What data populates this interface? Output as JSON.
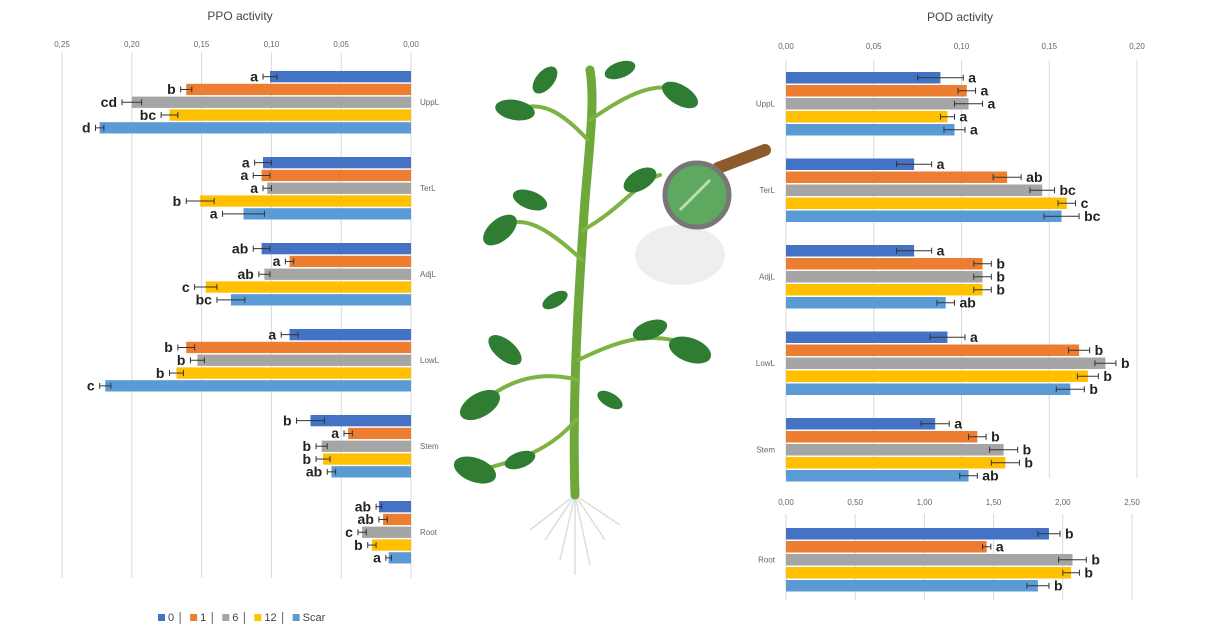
{
  "chart_data": [
    {
      "type": "bar",
      "orientation": "horizontal",
      "title": "PPO activity",
      "categories": [
        "UppL",
        "TerL",
        "AdjL",
        "LowL",
        "Stem",
        "Root"
      ],
      "xlim": [
        0.25,
        0
      ],
      "xticks": [
        {
          "value": 0.25,
          "label": "0,25"
        },
        {
          "value": 0.2,
          "label": "0,20"
        },
        {
          "value": 0.15,
          "label": "0,15"
        },
        {
          "value": 0.1,
          "label": "0,10"
        },
        {
          "value": 0.05,
          "label": "0,05"
        },
        {
          "value": 0,
          "label": "0,00"
        }
      ],
      "grid": true,
      "series": [
        {
          "name": "0",
          "color": "#4472c4",
          "values": [
            0.101,
            0.106,
            0.107,
            0.087,
            0.072,
            0.023
          ],
          "errors": [
            0.005,
            0.006,
            0.006,
            0.006,
            0.01,
            0.002
          ],
          "letters": [
            "a",
            "a",
            "ab",
            "a",
            "b",
            "ab"
          ]
        },
        {
          "name": "1",
          "color": "#ed7d31",
          "values": [
            0.161,
            0.107,
            0.087,
            0.161,
            0.045,
            0.02
          ],
          "errors": [
            0.004,
            0.006,
            0.003,
            0.006,
            0.003,
            0.003
          ],
          "letters": [
            "b",
            "a",
            "a",
            "b",
            "a",
            "ab"
          ]
        },
        {
          "name": "6",
          "color": "#a5a5a5",
          "values": [
            0.2,
            0.103,
            0.105,
            0.153,
            0.064,
            0.035
          ],
          "errors": [
            0.007,
            0.003,
            0.004,
            0.005,
            0.004,
            0.003
          ],
          "letters": [
            "cd",
            "a",
            "ab",
            "b",
            "b",
            "c"
          ]
        },
        {
          "name": "12",
          "color": "#ffc000",
          "values": [
            0.173,
            0.151,
            0.147,
            0.168,
            0.063,
            0.028
          ],
          "errors": [
            0.006,
            0.01,
            0.008,
            0.005,
            0.005,
            0.003
          ],
          "letters": [
            "bc",
            "b",
            "c",
            "b",
            "b",
            "b"
          ]
        },
        {
          "name": "Scar",
          "color": "#5b9bd5",
          "values": [
            0.223,
            0.12,
            0.129,
            0.219,
            0.057,
            0.016
          ],
          "errors": [
            0.003,
            0.015,
            0.01,
            0.004,
            0.003,
            0.002
          ],
          "letters": [
            "d",
            "a",
            "bc",
            "c",
            "ab",
            "a"
          ]
        }
      ]
    },
    {
      "type": "bar",
      "orientation": "horizontal",
      "title": "POD activity",
      "categories": [
        "UppL",
        "TerL",
        "AdjL",
        "LowL",
        "Stem"
      ],
      "xlim": [
        0,
        0.2
      ],
      "xticks": [
        {
          "value": 0,
          "label": "0,00"
        },
        {
          "value": 0.05,
          "label": "0,05"
        },
        {
          "value": 0.1,
          "label": "0,10"
        },
        {
          "value": 0.15,
          "label": "0,15"
        },
        {
          "value": 0.2,
          "label": "0,20"
        }
      ],
      "grid": true,
      "series": [
        {
          "color": "#4472c4",
          "values": [
            0.088,
            0.073,
            0.073,
            0.092,
            0.085
          ],
          "errors": [
            0.013,
            0.01,
            0.01,
            0.01,
            0.008
          ],
          "letters": [
            "a",
            "a",
            "a",
            "a",
            "a"
          ]
        },
        {
          "color": "#ed7d31",
          "values": [
            0.103,
            0.126,
            0.112,
            0.167,
            0.109
          ],
          "errors": [
            0.005,
            0.008,
            0.005,
            0.006,
            0.005
          ],
          "letters": [
            "a",
            "ab",
            "b",
            "b",
            "b"
          ]
        },
        {
          "color": "#a5a5a5",
          "values": [
            0.104,
            0.146,
            0.112,
            0.182,
            0.124
          ],
          "errors": [
            0.008,
            0.007,
            0.005,
            0.006,
            0.008
          ],
          "letters": [
            "a",
            "bc",
            "b",
            "b",
            "b"
          ]
        },
        {
          "color": "#ffc000",
          "values": [
            0.092,
            0.16,
            0.112,
            0.172,
            0.125
          ],
          "errors": [
            0.004,
            0.005,
            0.005,
            0.006,
            0.008
          ],
          "letters": [
            "a",
            "c",
            "b",
            "b",
            "b"
          ]
        },
        {
          "color": "#5b9bd5",
          "values": [
            0.096,
            0.157,
            0.091,
            0.162,
            0.104
          ],
          "errors": [
            0.006,
            0.01,
            0.005,
            0.008,
            0.005
          ],
          "letters": [
            "a",
            "bc",
            "ab",
            "b",
            "ab"
          ]
        }
      ]
    },
    {
      "type": "bar",
      "orientation": "horizontal",
      "categories": [
        "Root"
      ],
      "xlim": [
        0,
        2.5
      ],
      "xticks": [
        {
          "value": 0,
          "label": "0,00"
        },
        {
          "value": 0.5,
          "label": "0,50"
        },
        {
          "value": 1,
          "label": "1,00"
        },
        {
          "value": 1.5,
          "label": "1,50"
        },
        {
          "value": 2,
          "label": "2,00"
        },
        {
          "value": 2.5,
          "label": "2,50"
        }
      ],
      "grid": true,
      "series": [
        {
          "color": "#4472c4",
          "values": [
            1.9
          ],
          "errors": [
            0.08
          ],
          "letters": [
            "b"
          ]
        },
        {
          "color": "#ed7d31",
          "values": [
            1.45
          ],
          "errors": [
            0.03
          ],
          "letters": [
            "a"
          ]
        },
        {
          "color": "#a5a5a5",
          "values": [
            2.07
          ],
          "errors": [
            0.1
          ],
          "letters": [
            "b"
          ]
        },
        {
          "color": "#ffc000",
          "values": [
            2.06
          ],
          "errors": [
            0.06
          ],
          "letters": [
            "b"
          ]
        },
        {
          "color": "#5b9bd5",
          "values": [
            1.82
          ],
          "errors": [
            0.08
          ],
          "letters": [
            "b"
          ]
        }
      ]
    }
  ]
}
